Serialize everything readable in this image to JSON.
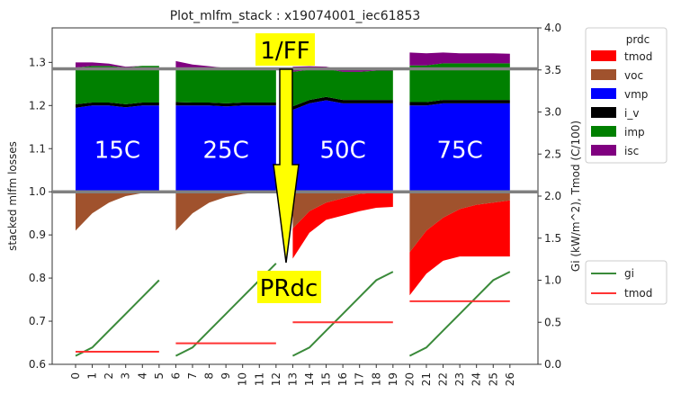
{
  "chart_data": {
    "type": "area",
    "title": "Plot_mlfm_stack : x19074001_iec61853",
    "ylabel": "stacked mlfm losses",
    "ylabel_right": "Gi (kW/m^2), Tmod (C/100)",
    "ylim": [
      0.6,
      1.38
    ],
    "ylim_right": [
      0.0,
      4.0
    ],
    "xlim": [
      0,
      26
    ],
    "x_ticks": [
      "0",
      "1",
      "2",
      "3",
      "4",
      "5",
      "6",
      "7",
      "8",
      "9",
      "10",
      "11",
      "12",
      "13",
      "14",
      "15",
      "16",
      "17",
      "18",
      "19",
      "20",
      "21",
      "22",
      "23",
      "24",
      "25",
      "26"
    ],
    "y_ticks": [
      "0.6",
      "0.7",
      "0.8",
      "0.9",
      "1.0",
      "1.1",
      "1.2",
      "1.3"
    ],
    "y_ticks_right": [
      "0.0",
      "0.5",
      "1.0",
      "1.5",
      "2.0",
      "2.5",
      "3.0",
      "3.5",
      "4.0"
    ],
    "reference_lines": [
      1.0,
      1.285
    ],
    "stack_legend_title": "prdc",
    "stack_legend": [
      {
        "name": "tmod",
        "color": "#ff0000"
      },
      {
        "name": "voc",
        "color": "#a0522d"
      },
      {
        "name": "vmp",
        "color": "#0000ff"
      },
      {
        "name": "i_v",
        "color": "#000000"
      },
      {
        "name": "imp",
        "color": "#008000"
      },
      {
        "name": "isc",
        "color": "#800080"
      }
    ],
    "line_legend": [
      {
        "name": "gi",
        "color": "#3a8a3a"
      },
      {
        "name": "tmod",
        "color": "#ff3333"
      }
    ],
    "groups": [
      {
        "label": "15C",
        "x": [
          0,
          1,
          2,
          3,
          4,
          5
        ],
        "tmod": [
          0,
          0,
          0,
          0,
          0,
          0
        ],
        "voc": [
          0.09,
          0.05,
          0.025,
          0.01,
          0.003,
          0
        ],
        "vmp": [
          0.195,
          0.2,
          0.2,
          0.196,
          0.2,
          0.2
        ],
        "i_v": [
          0.008,
          0.007,
          0.007,
          0.007,
          0.007,
          0.007
        ],
        "imp": [
          0.085,
          0.085,
          0.085,
          0.085,
          0.085,
          0.085
        ],
        "isc": [
          0.012,
          0.008,
          0.005,
          0.002,
          0,
          0
        ],
        "gi": [
          0.1,
          0.2,
          0.4,
          0.6,
          0.8,
          1.0
        ],
        "tmod_line": 0.15
      },
      {
        "label": "25C",
        "x": [
          6,
          7,
          8,
          9,
          10,
          11,
          12
        ],
        "tmod": [
          0,
          0,
          0,
          0,
          0,
          0,
          0
        ],
        "voc": [
          0.09,
          0.05,
          0.025,
          0.012,
          0.005,
          0.001,
          0
        ],
        "vmp": [
          0.2,
          0.2,
          0.2,
          0.198,
          0.2,
          0.2,
          0.2
        ],
        "i_v": [
          0.008,
          0.007,
          0.007,
          0.007,
          0.007,
          0.007,
          0.007
        ],
        "imp": [
          0.08,
          0.08,
          0.08,
          0.08,
          0.08,
          0.08,
          0.08
        ],
        "isc": [
          0.015,
          0.008,
          0.004,
          0.002,
          0,
          0,
          0
        ],
        "gi": [
          0.1,
          0.2,
          0.4,
          0.6,
          0.8,
          1.0,
          1.2
        ],
        "tmod_line": 0.25
      },
      {
        "label": "50C",
        "x": [
          13,
          14,
          15,
          16,
          17,
          18,
          19
        ],
        "tmod": [
          0.07,
          0.05,
          0.04,
          0.04,
          0.04,
          0.035,
          0.035
        ],
        "voc": [
          0.085,
          0.045,
          0.025,
          0.015,
          0.005,
          0.002,
          0
        ],
        "vmp": [
          0.19,
          0.205,
          0.212,
          0.205,
          0.205,
          0.205,
          0.205
        ],
        "i_v": [
          0.008,
          0.008,
          0.008,
          0.008,
          0.008,
          0.008,
          0.008
        ],
        "imp": [
          0.08,
          0.07,
          0.065,
          0.065,
          0.065,
          0.068,
          0.068
        ],
        "isc": [
          0.012,
          0.008,
          0.005,
          0.004,
          0.004,
          0.004,
          0.004
        ],
        "gi": [
          0.1,
          0.2,
          0.4,
          0.6,
          0.8,
          1.0,
          1.1
        ],
        "tmod_line": 0.5
      },
      {
        "label": "75C",
        "x": [
          20,
          21,
          22,
          23,
          24,
          25,
          26
        ],
        "tmod": [
          0.1,
          0.1,
          0.1,
          0.11,
          0.12,
          0.125,
          0.13
        ],
        "voc": [
          0.14,
          0.09,
          0.06,
          0.04,
          0.03,
          0.025,
          0.02
        ],
        "vmp": [
          0.2,
          0.2,
          0.205,
          0.205,
          0.205,
          0.205,
          0.205
        ],
        "i_v": [
          0.008,
          0.008,
          0.008,
          0.008,
          0.008,
          0.008,
          0.008
        ],
        "imp": [
          0.085,
          0.085,
          0.085,
          0.085,
          0.085,
          0.085,
          0.085
        ],
        "isc": [
          0.03,
          0.028,
          0.025,
          0.023,
          0.023,
          0.023,
          0.022
        ],
        "gi": [
          0.1,
          0.2,
          0.4,
          0.6,
          0.8,
          1.0,
          1.1
        ],
        "tmod_line": 0.75
      }
    ],
    "annotations": {
      "top": "1/FF",
      "bottom": "PRdc"
    },
    "colors": {
      "gi": "#3a8a3a",
      "tmod_line": "#ff3333",
      "ref": "#808080",
      "annotation_bg": "#ffff00",
      "arrow": "#ffff00"
    }
  }
}
